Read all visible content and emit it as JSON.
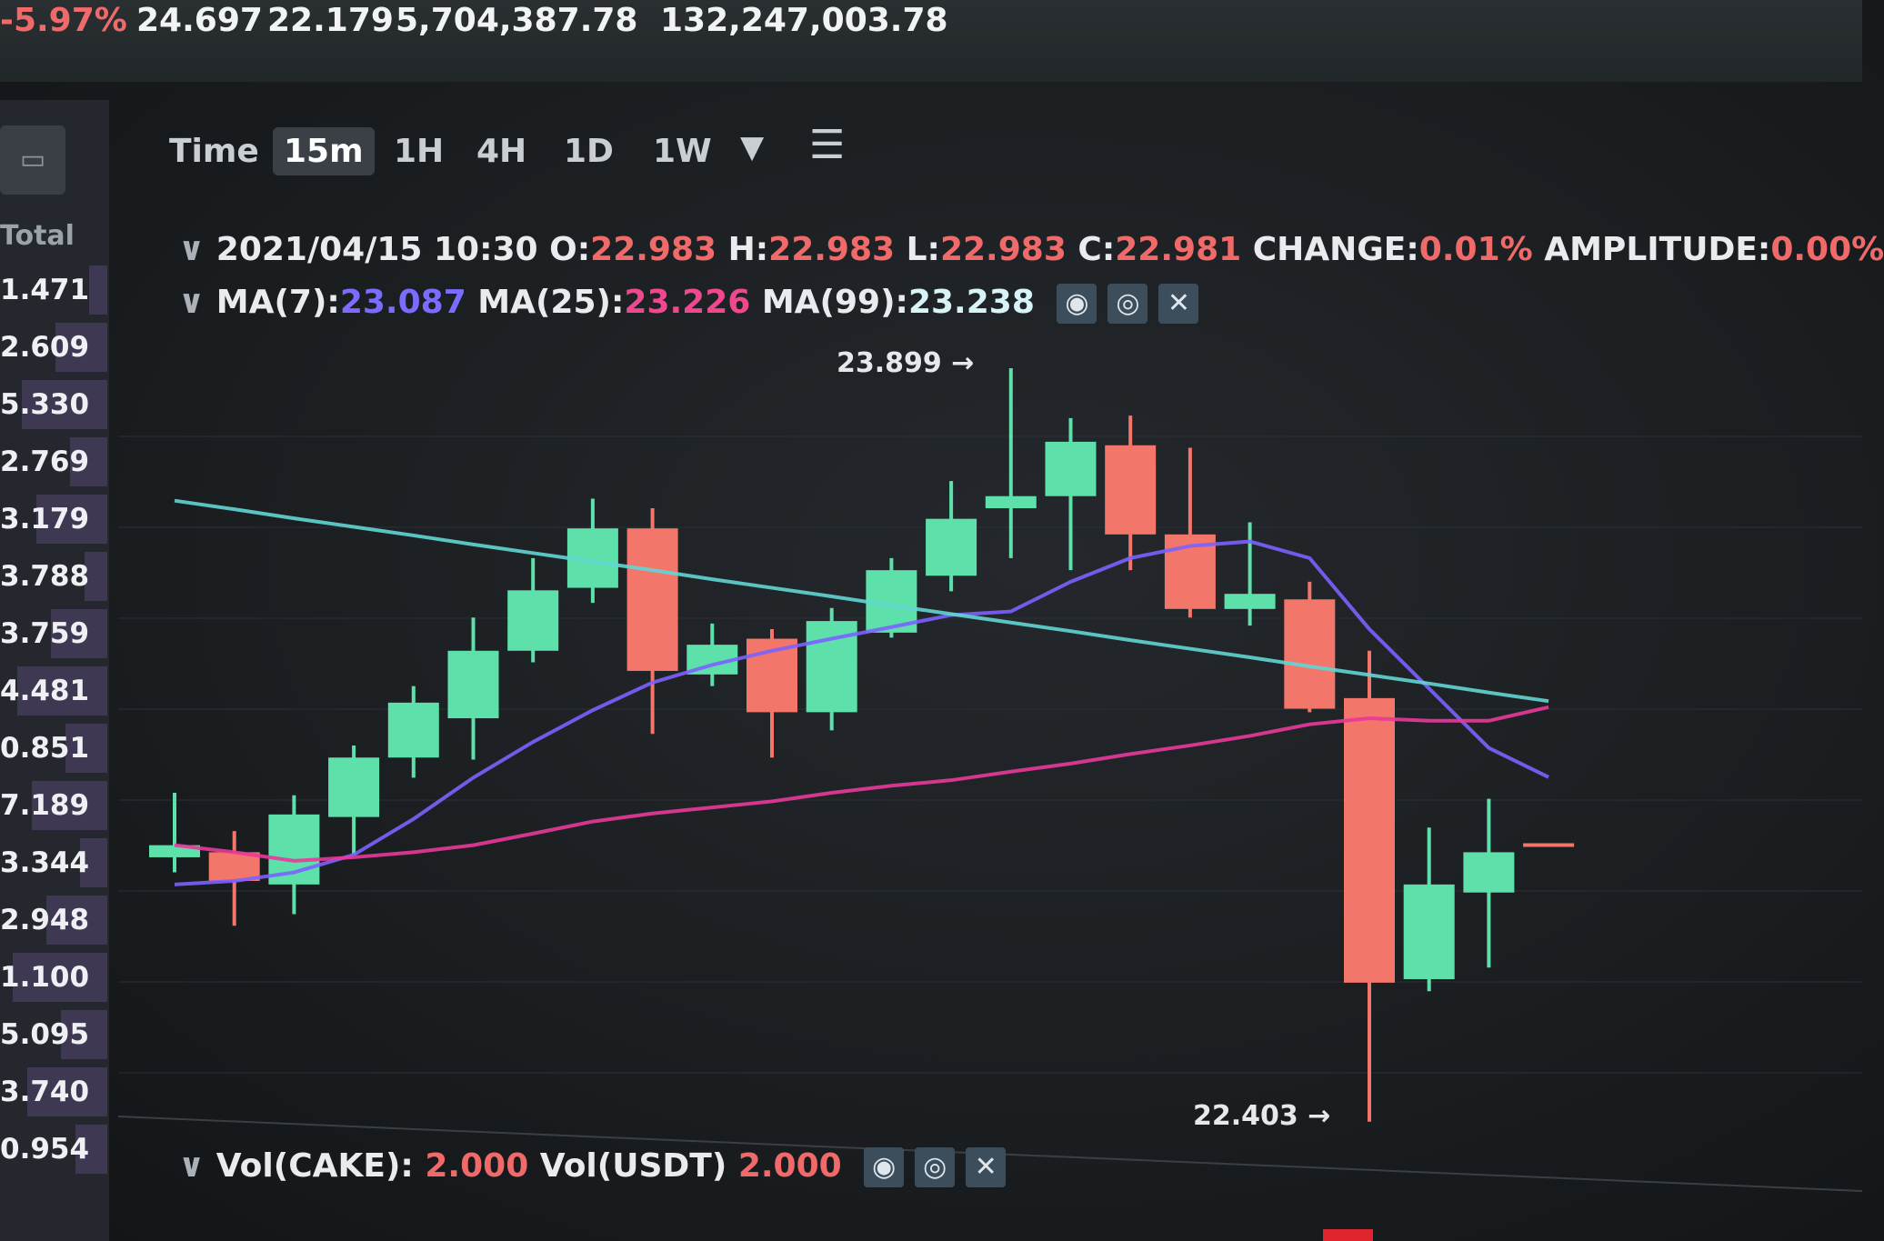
{
  "ticker": {
    "change_percent": "-5.97%",
    "high_24h": "24.697",
    "low_24h": "22.179",
    "volume_base": "5,704,387.78",
    "volume_quote": "132,247,003.78"
  },
  "order_book": {
    "header": "Total",
    "rows": [
      "1.471",
      "2.609",
      "5.330",
      "2.769",
      "3.179",
      "3.788",
      "3.759",
      "4.481",
      "0.851",
      "7.189",
      "3.344",
      "2.948",
      "1.100",
      "5.095",
      "3.740",
      "0.954"
    ]
  },
  "toolbar": {
    "time_label": "Time",
    "intervals": [
      "15m",
      "1H",
      "4H",
      "1D",
      "1W"
    ],
    "active_interval": "15m"
  },
  "ohlc": {
    "datetime": "2021/04/15 10:30",
    "o_label": "O:",
    "o": "22.983",
    "h_label": "H:",
    "h": "22.983",
    "l_label": "L:",
    "l": "22.983",
    "c_label": "C:",
    "c": "22.981",
    "change_label": "CHANGE:",
    "change": "0.01%",
    "amplitude_label": "AMPLITUDE:",
    "amplitude": "0.00%"
  },
  "ma": {
    "ma7_label": "MA(7):",
    "ma7": "23.087",
    "ma25_label": "MA(25):",
    "ma25": "23.226",
    "ma99_label": "MA(99):",
    "ma99": "23.238"
  },
  "volume": {
    "vol_base_label": "Vol(CAKE):",
    "vol_base": "2.000",
    "vol_quote_label": "Vol(USDT)",
    "vol_quote": "2.000"
  },
  "colors": {
    "up": "#5de0aa",
    "down": "#f2766a",
    "ma7": "#7b62ff",
    "ma25": "#e9389a",
    "ma99": "#62d6d4"
  },
  "chart_data": {
    "type": "candlestick",
    "interval": "15m",
    "annotations": {
      "high": "23.899",
      "low": "22.403"
    },
    "candles": [
      {
        "o": 22.928,
        "h": 23.056,
        "l": 22.898,
        "c": 22.952
      },
      {
        "o": 22.938,
        "h": 22.98,
        "l": 22.792,
        "c": 22.881
      },
      {
        "o": 22.874,
        "h": 23.051,
        "l": 22.815,
        "c": 23.013
      },
      {
        "o": 23.008,
        "h": 23.15,
        "l": 22.933,
        "c": 23.126
      },
      {
        "o": 23.126,
        "h": 23.268,
        "l": 23.086,
        "c": 23.235
      },
      {
        "o": 23.204,
        "h": 23.404,
        "l": 23.122,
        "c": 23.338
      },
      {
        "o": 23.338,
        "h": 23.522,
        "l": 23.315,
        "c": 23.458
      },
      {
        "o": 23.463,
        "h": 23.64,
        "l": 23.433,
        "c": 23.581
      },
      {
        "o": 23.581,
        "h": 23.621,
        "l": 23.173,
        "c": 23.298
      },
      {
        "o": 23.291,
        "h": 23.392,
        "l": 23.268,
        "c": 23.35
      },
      {
        "o": 23.362,
        "h": 23.381,
        "l": 23.126,
        "c": 23.216
      },
      {
        "o": 23.216,
        "h": 23.423,
        "l": 23.18,
        "c": 23.397
      },
      {
        "o": 23.374,
        "h": 23.522,
        "l": 23.364,
        "c": 23.498
      },
      {
        "o": 23.487,
        "h": 23.675,
        "l": 23.456,
        "c": 23.6
      },
      {
        "o": 23.621,
        "h": 23.899,
        "l": 23.522,
        "c": 23.645
      },
      {
        "o": 23.645,
        "h": 23.8,
        "l": 23.498,
        "c": 23.753
      },
      {
        "o": 23.746,
        "h": 23.805,
        "l": 23.498,
        "c": 23.569
      },
      {
        "o": 23.569,
        "h": 23.741,
        "l": 23.404,
        "c": 23.421
      },
      {
        "o": 23.421,
        "h": 23.593,
        "l": 23.388,
        "c": 23.451
      },
      {
        "o": 23.44,
        "h": 23.475,
        "l": 23.216,
        "c": 23.223
      },
      {
        "o": 23.244,
        "h": 23.338,
        "l": 22.403,
        "c": 22.679
      },
      {
        "o": 22.686,
        "h": 22.987,
        "l": 22.662,
        "c": 22.874
      },
      {
        "o": 22.858,
        "h": 23.044,
        "l": 22.709,
        "c": 22.938
      },
      {
        "o": 22.983,
        "h": 22.983,
        "l": 22.983,
        "c": 22.981
      }
    ],
    "series": [
      {
        "name": "MA(7)",
        "values": [
          22.874,
          22.881,
          22.898,
          22.933,
          23.004,
          23.086,
          23.157,
          23.22,
          23.275,
          23.31,
          23.338,
          23.362,
          23.385,
          23.409,
          23.416,
          23.475,
          23.522,
          23.546,
          23.555,
          23.522,
          23.381,
          23.263,
          23.145,
          23.087
        ]
      },
      {
        "name": "MA(25)",
        "values": [
          22.952,
          22.938,
          22.921,
          22.928,
          22.938,
          22.952,
          22.975,
          22.999,
          23.015,
          23.027,
          23.039,
          23.056,
          23.07,
          23.081,
          23.098,
          23.114,
          23.133,
          23.15,
          23.169,
          23.192,
          23.204,
          23.199,
          23.199,
          23.226
        ]
      },
      {
        "name": "MA(99)",
        "values": [
          23.636,
          23.619,
          23.601,
          23.584,
          23.567,
          23.549,
          23.532,
          23.515,
          23.498,
          23.48,
          23.463,
          23.446,
          23.428,
          23.411,
          23.394,
          23.377,
          23.359,
          23.342,
          23.325,
          23.307,
          23.29,
          23.273,
          23.255,
          23.238
        ]
      }
    ]
  }
}
